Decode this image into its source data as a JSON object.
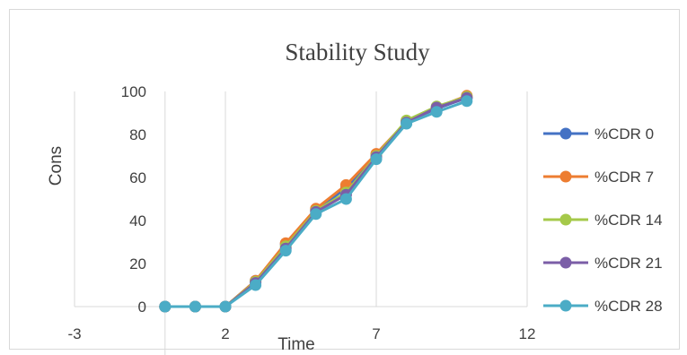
{
  "chart_data": {
    "type": "line",
    "title": "Stability Study",
    "xlabel": "Time",
    "ylabel": "Cons",
    "xlim": [
      -3,
      12
    ],
    "ylim": [
      0,
      100
    ],
    "x_ticks": [
      -3,
      2,
      7,
      12
    ],
    "y_ticks": [
      0,
      20,
      40,
      60,
      80,
      100
    ],
    "x": [
      0,
      1,
      2,
      3,
      4,
      5,
      6,
      7,
      8,
      9,
      10
    ],
    "grid": "vertical",
    "legend_position": "right",
    "series": [
      {
        "name": "%CDR 0",
        "color": "#4472C4",
        "values": [
          0,
          0,
          0,
          12,
          29,
          45,
          55,
          70,
          86,
          92,
          97
        ]
      },
      {
        "name": "%CDR 7",
        "color": "#ED7D31",
        "values": [
          0,
          0,
          0,
          12,
          29.5,
          45.5,
          56.5,
          71,
          86,
          92.5,
          98
        ]
      },
      {
        "name": "%CDR 14",
        "color": "#A5C94A",
        "values": [
          0,
          0,
          0,
          11.5,
          28,
          44.5,
          53,
          70,
          86.5,
          93,
          97.5
        ]
      },
      {
        "name": "%CDR 21",
        "color": "#7B5EA7",
        "values": [
          0,
          0,
          0,
          11,
          27,
          44,
          52,
          69.5,
          85.5,
          92.5,
          97
        ]
      },
      {
        "name": "%CDR 28",
        "color": "#4BACC6",
        "values": [
          0,
          0,
          0,
          10,
          26,
          43,
          50,
          68.5,
          85,
          90.5,
          95.5
        ]
      }
    ]
  }
}
